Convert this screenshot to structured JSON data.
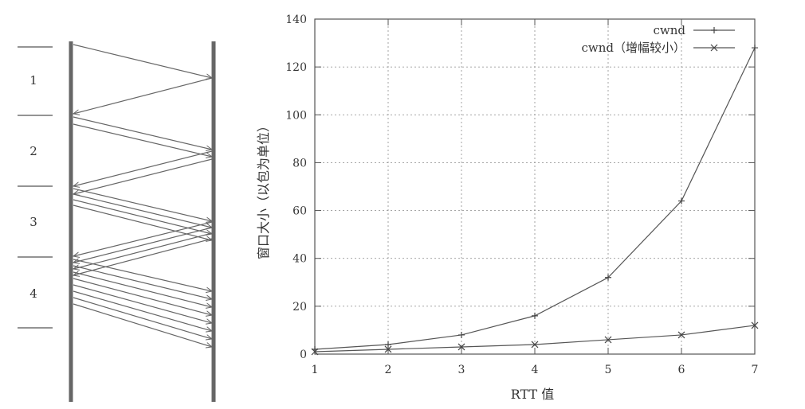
{
  "timeline": {
    "rounds": [
      "1",
      "2",
      "3",
      "4"
    ]
  },
  "chart_data": {
    "type": "line",
    "title": "",
    "xlabel": "RTT 值",
    "ylabel": "窗口大小（以包为单位）",
    "x": [
      1,
      2,
      3,
      4,
      5,
      6,
      7
    ],
    "xlim": [
      1,
      7
    ],
    "ylim": [
      0,
      140
    ],
    "xticks": [
      "1",
      "2",
      "3",
      "4",
      "5",
      "6",
      "7"
    ],
    "yticks": [
      "0",
      "20",
      "40",
      "60",
      "80",
      "100",
      "120",
      "140"
    ],
    "grid": true,
    "legend_position": "top-right",
    "series": [
      {
        "name": "cwnd",
        "marker": "plus",
        "values": [
          2,
          4,
          8,
          16,
          32,
          64,
          128
        ]
      },
      {
        "name": "cwnd（增幅较小）",
        "marker": "x",
        "values": [
          1,
          2,
          3,
          4,
          6,
          8,
          12
        ]
      }
    ]
  }
}
